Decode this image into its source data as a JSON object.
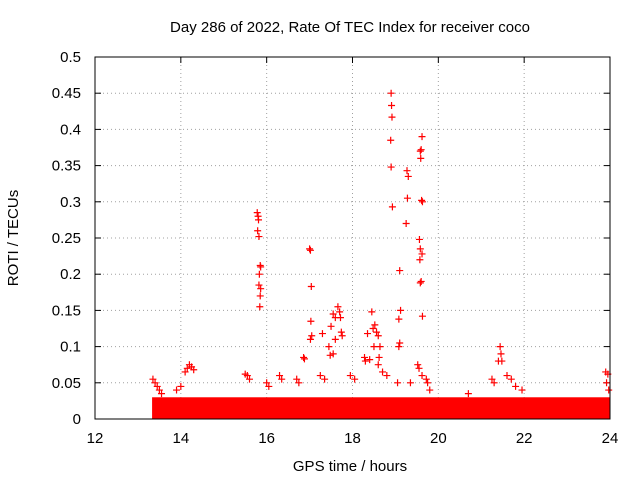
{
  "chart_data": {
    "type": "scatter",
    "title": "Day 286 of 2022, Rate Of TEC Index for receiver coco",
    "xlabel": "GPS time / hours",
    "ylabel": "ROTI / TECUs",
    "xlim": [
      12,
      24
    ],
    "ylim": [
      0,
      0.5
    ],
    "x_ticks": [
      12,
      14,
      16,
      18,
      20,
      22,
      24
    ],
    "y_ticks": [
      0,
      0.05,
      0.1,
      0.15,
      0.2,
      0.25,
      0.3,
      0.35,
      0.4,
      0.45,
      0.5
    ],
    "x_tick_labels": [
      "12",
      "14",
      "16",
      "18",
      "20",
      "22",
      "24"
    ],
    "y_tick_labels": [
      "0",
      "0.05",
      "0.1",
      "0.15",
      "0.2",
      "0.25",
      "0.3",
      "0.35",
      "0.4",
      "0.45",
      "0.5"
    ],
    "grid": true,
    "marker": "+",
    "color": "#ff0000",
    "series": [
      {
        "name": "ROTI",
        "data_start_hour": 13.33,
        "data_end_hour": 24.0,
        "baseline_band": [
          0.0,
          0.03
        ],
        "points": [
          [
            15.78,
            0.285
          ],
          [
            15.8,
            0.28
          ],
          [
            15.81,
            0.275
          ],
          [
            15.79,
            0.26
          ],
          [
            15.82,
            0.252
          ],
          [
            15.85,
            0.212
          ],
          [
            15.86,
            0.21
          ],
          [
            15.83,
            0.2
          ],
          [
            15.82,
            0.185
          ],
          [
            15.86,
            0.18
          ],
          [
            15.85,
            0.17
          ],
          [
            15.84,
            0.155
          ],
          [
            17.0,
            0.235
          ],
          [
            17.02,
            0.233
          ],
          [
            17.04,
            0.183
          ],
          [
            17.03,
            0.135
          ],
          [
            17.05,
            0.115
          ],
          [
            17.02,
            0.11
          ],
          [
            16.86,
            0.085
          ],
          [
            16.88,
            0.083
          ],
          [
            17.3,
            0.118
          ],
          [
            17.45,
            0.1
          ],
          [
            17.5,
            0.128
          ],
          [
            17.55,
            0.145
          ],
          [
            17.6,
            0.14
          ],
          [
            17.66,
            0.155
          ],
          [
            17.7,
            0.148
          ],
          [
            17.72,
            0.14
          ],
          [
            17.74,
            0.12
          ],
          [
            17.76,
            0.115
          ],
          [
            17.6,
            0.11
          ],
          [
            17.55,
            0.09
          ],
          [
            17.48,
            0.088
          ],
          [
            18.35,
            0.118
          ],
          [
            18.45,
            0.148
          ],
          [
            18.48,
            0.125
          ],
          [
            18.52,
            0.13
          ],
          [
            18.56,
            0.12
          ],
          [
            18.6,
            0.115
          ],
          [
            18.64,
            0.1
          ],
          [
            18.5,
            0.1
          ],
          [
            18.28,
            0.085
          ],
          [
            18.4,
            0.082
          ],
          [
            18.62,
            0.085
          ],
          [
            18.9,
            0.45
          ],
          [
            18.91,
            0.433
          ],
          [
            18.92,
            0.417
          ],
          [
            18.89,
            0.385
          ],
          [
            18.9,
            0.348
          ],
          [
            18.93,
            0.293
          ],
          [
            19.1,
            0.205
          ],
          [
            19.12,
            0.15
          ],
          [
            19.08,
            0.138
          ],
          [
            19.1,
            0.105
          ],
          [
            19.08,
            0.1
          ],
          [
            19.27,
            0.343
          ],
          [
            19.3,
            0.335
          ],
          [
            19.28,
            0.305
          ],
          [
            19.25,
            0.27
          ],
          [
            19.62,
            0.39
          ],
          [
            19.6,
            0.372
          ],
          [
            19.58,
            0.37
          ],
          [
            19.59,
            0.36
          ],
          [
            19.61,
            0.302
          ],
          [
            19.63,
            0.3
          ],
          [
            19.56,
            0.248
          ],
          [
            19.58,
            0.235
          ],
          [
            19.62,
            0.228
          ],
          [
            19.57,
            0.22
          ],
          [
            19.6,
            0.19
          ],
          [
            19.58,
            0.188
          ],
          [
            19.63,
            0.142
          ],
          [
            19.52,
            0.075
          ],
          [
            19.55,
            0.07
          ],
          [
            19.62,
            0.06
          ],
          [
            19.72,
            0.055
          ],
          [
            21.25,
            0.055
          ],
          [
            21.3,
            0.05
          ],
          [
            21.4,
            0.08
          ],
          [
            21.44,
            0.1
          ],
          [
            21.46,
            0.09
          ],
          [
            21.48,
            0.08
          ],
          [
            21.6,
            0.06
          ],
          [
            21.7,
            0.055
          ],
          [
            21.8,
            0.045
          ],
          [
            21.95,
            0.04
          ],
          [
            20.7,
            0.035
          ],
          [
            23.9,
            0.065
          ],
          [
            23.95,
            0.062
          ],
          [
            23.92,
            0.05
          ],
          [
            23.97,
            0.04
          ],
          [
            13.35,
            0.055
          ],
          [
            13.4,
            0.05
          ],
          [
            13.45,
            0.045
          ],
          [
            13.5,
            0.04
          ],
          [
            13.55,
            0.035
          ],
          [
            14.2,
            0.075
          ],
          [
            14.25,
            0.072
          ],
          [
            14.3,
            0.068
          ],
          [
            14.1,
            0.065
          ],
          [
            14.15,
            0.07
          ],
          [
            14.0,
            0.045
          ],
          [
            13.9,
            0.04
          ],
          [
            15.5,
            0.062
          ],
          [
            15.55,
            0.06
          ],
          [
            15.6,
            0.055
          ],
          [
            16.0,
            0.05
          ],
          [
            16.05,
            0.045
          ],
          [
            16.3,
            0.06
          ],
          [
            16.35,
            0.055
          ],
          [
            16.7,
            0.055
          ],
          [
            16.75,
            0.05
          ],
          [
            17.25,
            0.06
          ],
          [
            17.35,
            0.055
          ],
          [
            17.95,
            0.06
          ],
          [
            18.05,
            0.055
          ],
          [
            18.3,
            0.08
          ],
          [
            18.6,
            0.075
          ],
          [
            18.7,
            0.065
          ],
          [
            18.8,
            0.06
          ],
          [
            19.05,
            0.05
          ],
          [
            19.35,
            0.05
          ],
          [
            19.8,
            0.04
          ],
          [
            19.75,
            0.05
          ]
        ]
      }
    ]
  }
}
